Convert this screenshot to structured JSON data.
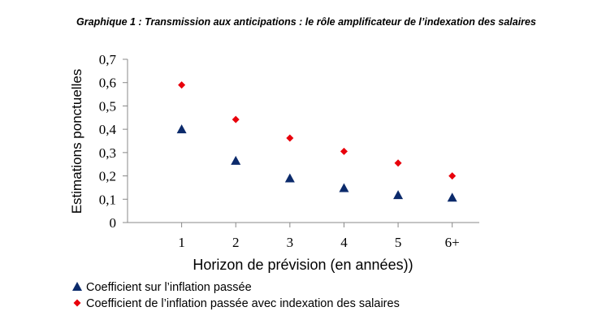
{
  "chart_data": {
    "type": "scatter",
    "title": "Graphique 1 : Transmission aux anticipations : le rôle amplificateur de l’indexation des salaires",
    "y_label": "Estimations ponctuelles",
    "x_label": "Horizon de prévision (en années))",
    "categories": [
      "1",
      "2",
      "3",
      "4",
      "5",
      "6+"
    ],
    "series": [
      {
        "name": "Coefficient sur l’inflation passée",
        "color": "#0b2a6b",
        "marker": "triangle",
        "values": [
          0.4,
          0.265,
          0.19,
          0.148,
          0.118,
          0.107
        ]
      },
      {
        "name": "Coefficient de l’inflation passée avec indexation des salaires",
        "color": "#e8000b",
        "marker": "diamond",
        "values": [
          0.59,
          0.442,
          0.362,
          0.305,
          0.255,
          0.2
        ]
      }
    ],
    "ylim": [
      0,
      0.7
    ],
    "yticks": [
      0,
      {
        "value": 0.1,
        "label": "0,1"
      },
      {
        "value": 0.2,
        "label": "0,2"
      },
      {
        "value": 0.3,
        "label": "0,3"
      },
      {
        "value": 0.4,
        "label": "0,4"
      },
      {
        "value": 0.5,
        "label": "0,5"
      },
      {
        "value": 0.6,
        "label": "0,6"
      },
      {
        "value": 0.7,
        "label": "0,7"
      }
    ],
    "grid": false
  }
}
